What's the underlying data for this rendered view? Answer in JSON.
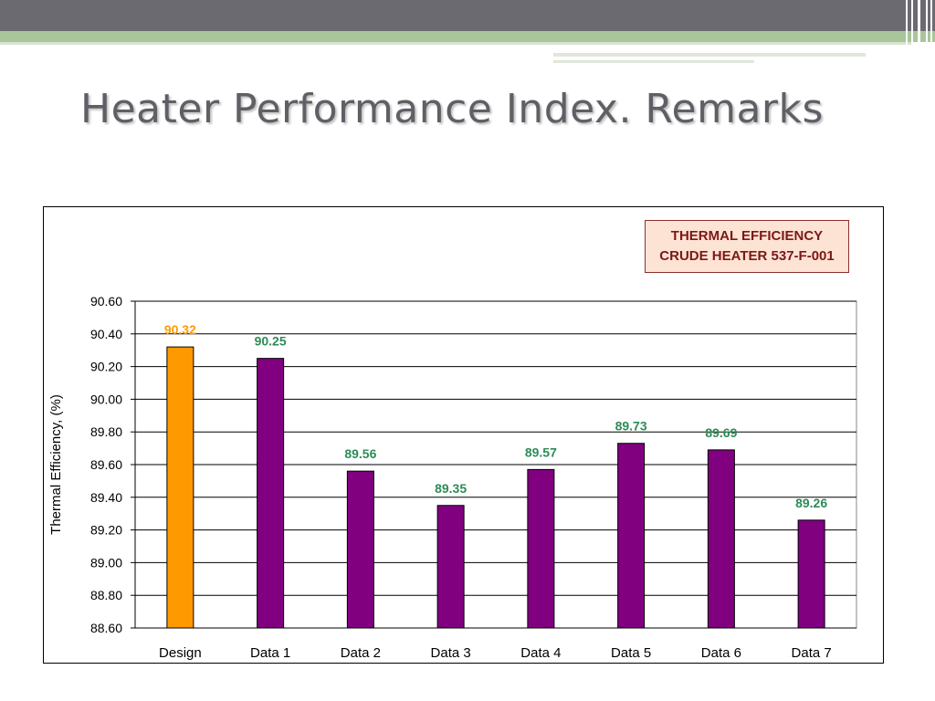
{
  "slide": {
    "title": "Heater Performance Index. Remarks"
  },
  "colors": {
    "top_band": "#6b6a70",
    "green_band": "#a9c59a",
    "title_text": "#5f6066",
    "design_bar": "#ff9900",
    "data_bar": "#800080",
    "design_label": "#ff9900",
    "data_label": "#2e8b57",
    "legend_fill": "#fde3d4",
    "legend_text": "#7b1818"
  },
  "legend": {
    "line1": "THERMAL EFFICIENCY",
    "line2": "CRUDE HEATER 537-F-001"
  },
  "chart_data": {
    "type": "bar",
    "title": "THERMAL EFFICIENCY CRUDE HEATER 537-F-001",
    "xlabel": "",
    "ylabel": "Thermal Efficiency, (%)",
    "categories": [
      "Design",
      "Data 1",
      "Data 2",
      "Data 3",
      "Data 4",
      "Data 5",
      "Data 6",
      "Data 7"
    ],
    "values": [
      90.32,
      90.25,
      89.56,
      89.35,
      89.57,
      89.73,
      89.69,
      89.26
    ],
    "data_labels": [
      "90.32",
      "90.25",
      "89.56",
      "89.35",
      "89.57",
      "89.73",
      "89.69",
      "89.26"
    ],
    "yticks": [
      "88.60",
      "88.80",
      "89.00",
      "89.20",
      "89.40",
      "89.60",
      "89.80",
      "90.00",
      "90.20",
      "90.40",
      "90.60"
    ],
    "ylim": [
      88.6,
      90.6
    ],
    "grid": true,
    "legend_position": "top-right"
  }
}
